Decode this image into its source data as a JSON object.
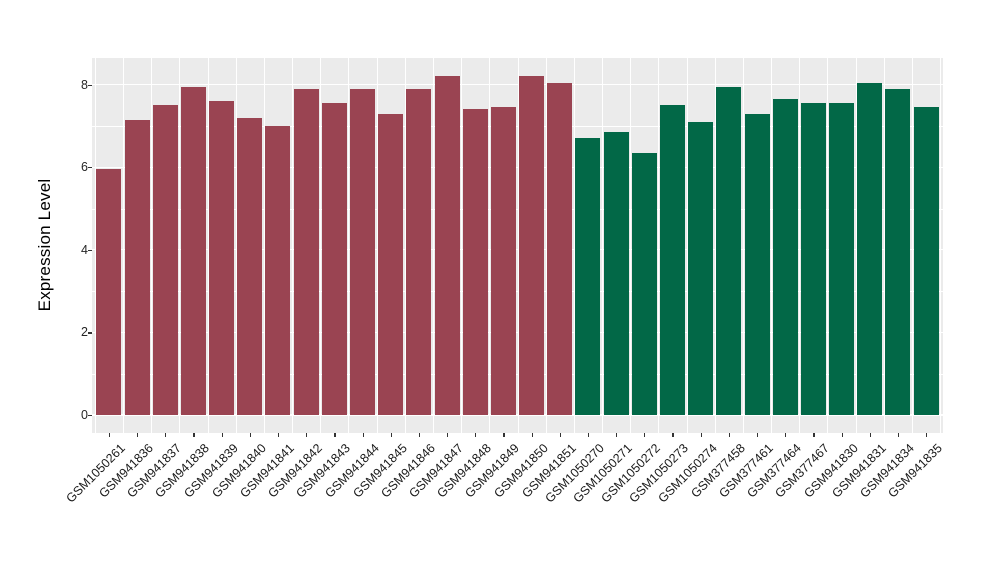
{
  "chart_data": {
    "type": "bar",
    "title": "",
    "xlabel": "",
    "ylabel": "Expression Level",
    "ylim": [
      0,
      8.65
    ],
    "yticks": [
      0,
      2,
      4,
      6,
      8
    ],
    "minor_yticks": [
      1,
      3,
      5,
      7
    ],
    "grid": true,
    "legend": "none",
    "panel_background": "#EBEBEB",
    "gridline_color": "#FFFFFF",
    "group_colors": {
      "group1": "#9A4452",
      "group2": "#026847"
    },
    "categories": [
      "GSM1050261",
      "GSM941836",
      "GSM941837",
      "GSM941838",
      "GSM941839",
      "GSM941840",
      "GSM941841",
      "GSM941842",
      "GSM941843",
      "GSM941844",
      "GSM941845",
      "GSM941846",
      "GSM941847",
      "GSM941848",
      "GSM941849",
      "GSM941850",
      "GSM941851",
      "GSM1050270",
      "GSM1050271",
      "GSM1050272",
      "GSM1050273",
      "GSM1050274",
      "GSM377458",
      "GSM377461",
      "GSM377464",
      "GSM377467",
      "GSM941830",
      "GSM941831",
      "GSM941834",
      "GSM941835"
    ],
    "values": [
      5.95,
      7.15,
      7.5,
      7.95,
      7.6,
      7.2,
      7.0,
      7.9,
      7.55,
      7.9,
      7.3,
      7.9,
      8.2,
      7.4,
      7.45,
      8.2,
      8.05,
      6.7,
      6.85,
      6.35,
      7.5,
      7.1,
      7.95,
      7.3,
      7.65,
      7.55,
      7.55,
      8.05,
      7.9,
      7.45
    ],
    "groups": [
      "group1",
      "group1",
      "group1",
      "group1",
      "group1",
      "group1",
      "group1",
      "group1",
      "group1",
      "group1",
      "group1",
      "group1",
      "group1",
      "group1",
      "group1",
      "group1",
      "group1",
      "group2",
      "group2",
      "group2",
      "group2",
      "group2",
      "group2",
      "group2",
      "group2",
      "group2",
      "group2",
      "group2",
      "group2",
      "group2"
    ]
  }
}
